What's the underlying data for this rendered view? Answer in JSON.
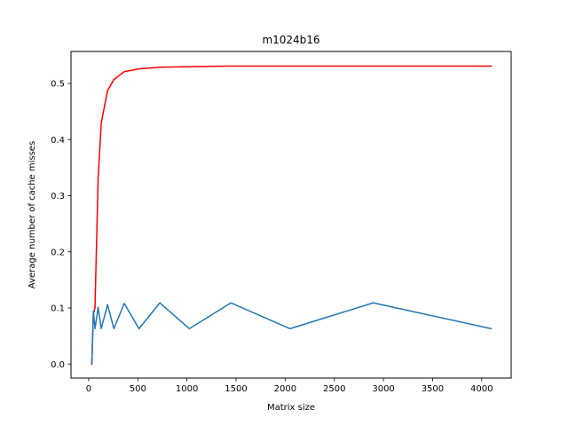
{
  "chart_data": {
    "type": "line",
    "title": "m1024b16",
    "xlabel": "Matrix size",
    "ylabel": "Average number of cache misses",
    "xlim": [
      -180,
      4300
    ],
    "ylim": [
      -0.025,
      0.557
    ],
    "xticks": [
      0,
      500,
      1000,
      1500,
      2000,
      2500,
      3000,
      3500,
      4000
    ],
    "yticks": [
      0.0,
      0.1,
      0.2,
      0.3,
      0.4,
      0.5
    ],
    "xtick_labels": [
      "0",
      "500",
      "1000",
      "1500",
      "2000",
      "2500",
      "3000",
      "3500",
      "4000"
    ],
    "ytick_labels": [
      "0.0",
      "0.1",
      "0.2",
      "0.3",
      "0.4",
      "0.5"
    ],
    "grid": false,
    "legend": "none",
    "series": [
      {
        "color": "#ff0000",
        "x": [
          32,
          48,
          64,
          96,
          128,
          192,
          256,
          362,
          512,
          724,
          1024,
          1448,
          2048,
          2896,
          4096
        ],
        "y": [
          0.0,
          0.09,
          0.1,
          0.33,
          0.43,
          0.487,
          0.507,
          0.521,
          0.526,
          0.529,
          0.53,
          0.531,
          0.531,
          0.531,
          0.531
        ]
      },
      {
        "color": "#1f77b4",
        "x": [
          32,
          48,
          64,
          96,
          128,
          192,
          256,
          362,
          512,
          724,
          1024,
          1448,
          2048,
          2896,
          4096
        ],
        "y": [
          0.0,
          0.095,
          0.063,
          0.101,
          0.063,
          0.106,
          0.063,
          0.108,
          0.063,
          0.109,
          0.063,
          0.109,
          0.063,
          0.109,
          0.063
        ]
      }
    ]
  }
}
